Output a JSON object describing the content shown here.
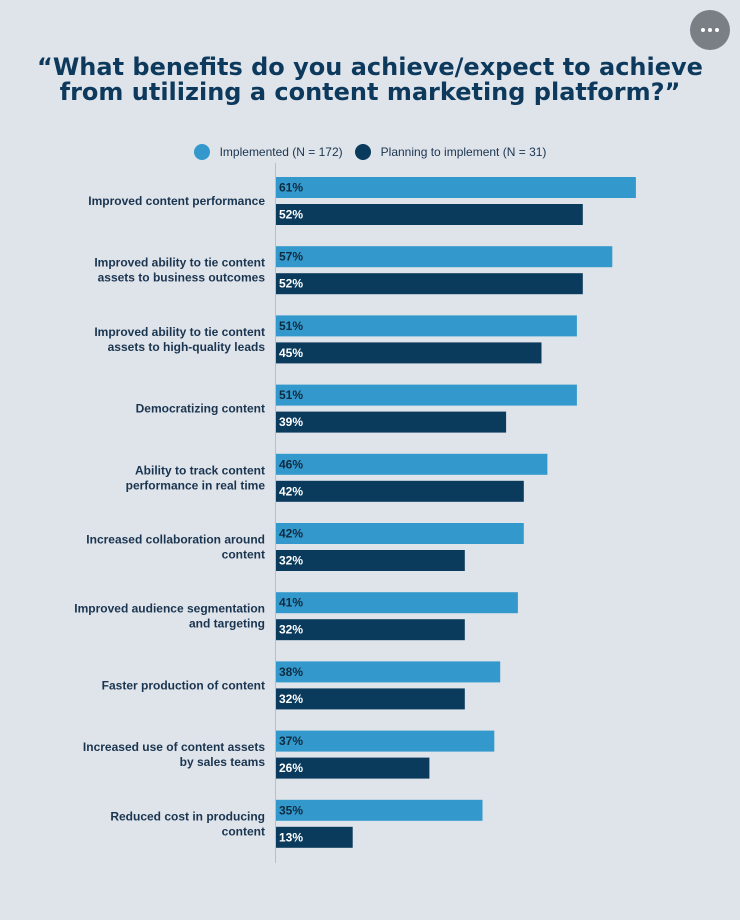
{
  "header": {
    "title": "“What benefits do you achieve/expect to achieve from utilizing a content marketing platform?”"
  },
  "menu": {
    "icon": "more-horizontal-icon"
  },
  "colors": {
    "implemented": "#3399cc",
    "planning": "#0a3a5c",
    "background": "#dfe3ea",
    "axis": "#b8bfc8"
  },
  "chart_data": {
    "type": "bar",
    "orientation": "horizontal",
    "title": "“What benefits do you achieve/expect to achieve from utilizing a content marketing platform?”",
    "categories": [
      [
        "Improved content performance"
      ],
      [
        "Improved ability to tie content",
        "assets to business outcomes"
      ],
      [
        "Improved ability to tie content",
        "assets to high-quality leads"
      ],
      [
        "Democratizing content"
      ],
      [
        "Ability to track content",
        "performance in real time"
      ],
      [
        "Increased collaboration around",
        "content"
      ],
      [
        "Improved audience segmentation",
        "and targeting"
      ],
      [
        "Faster production of content"
      ],
      [
        "Increased use of content assets",
        "by sales teams"
      ],
      [
        "Reduced cost in producing",
        "content"
      ]
    ],
    "series": [
      {
        "name": "Implemented (N = 172)",
        "values": [
          61,
          57,
          51,
          51,
          46,
          42,
          41,
          38,
          37,
          35
        ],
        "labels": [
          "61%",
          "57%",
          "51%",
          "51%",
          "46%",
          "42%",
          "41%",
          "38%",
          "37%",
          "35%"
        ]
      },
      {
        "name": "Planning to implement (N = 31)",
        "values": [
          52,
          52,
          45,
          39,
          42,
          32,
          32,
          32,
          26,
          13
        ],
        "labels": [
          "52%",
          "52%",
          "45%",
          "39%",
          "42%",
          "32%",
          "32%",
          "32%",
          "26%",
          "13%"
        ]
      }
    ],
    "xlim": [
      0,
      100
    ],
    "grid": false,
    "legend": "top-center"
  }
}
